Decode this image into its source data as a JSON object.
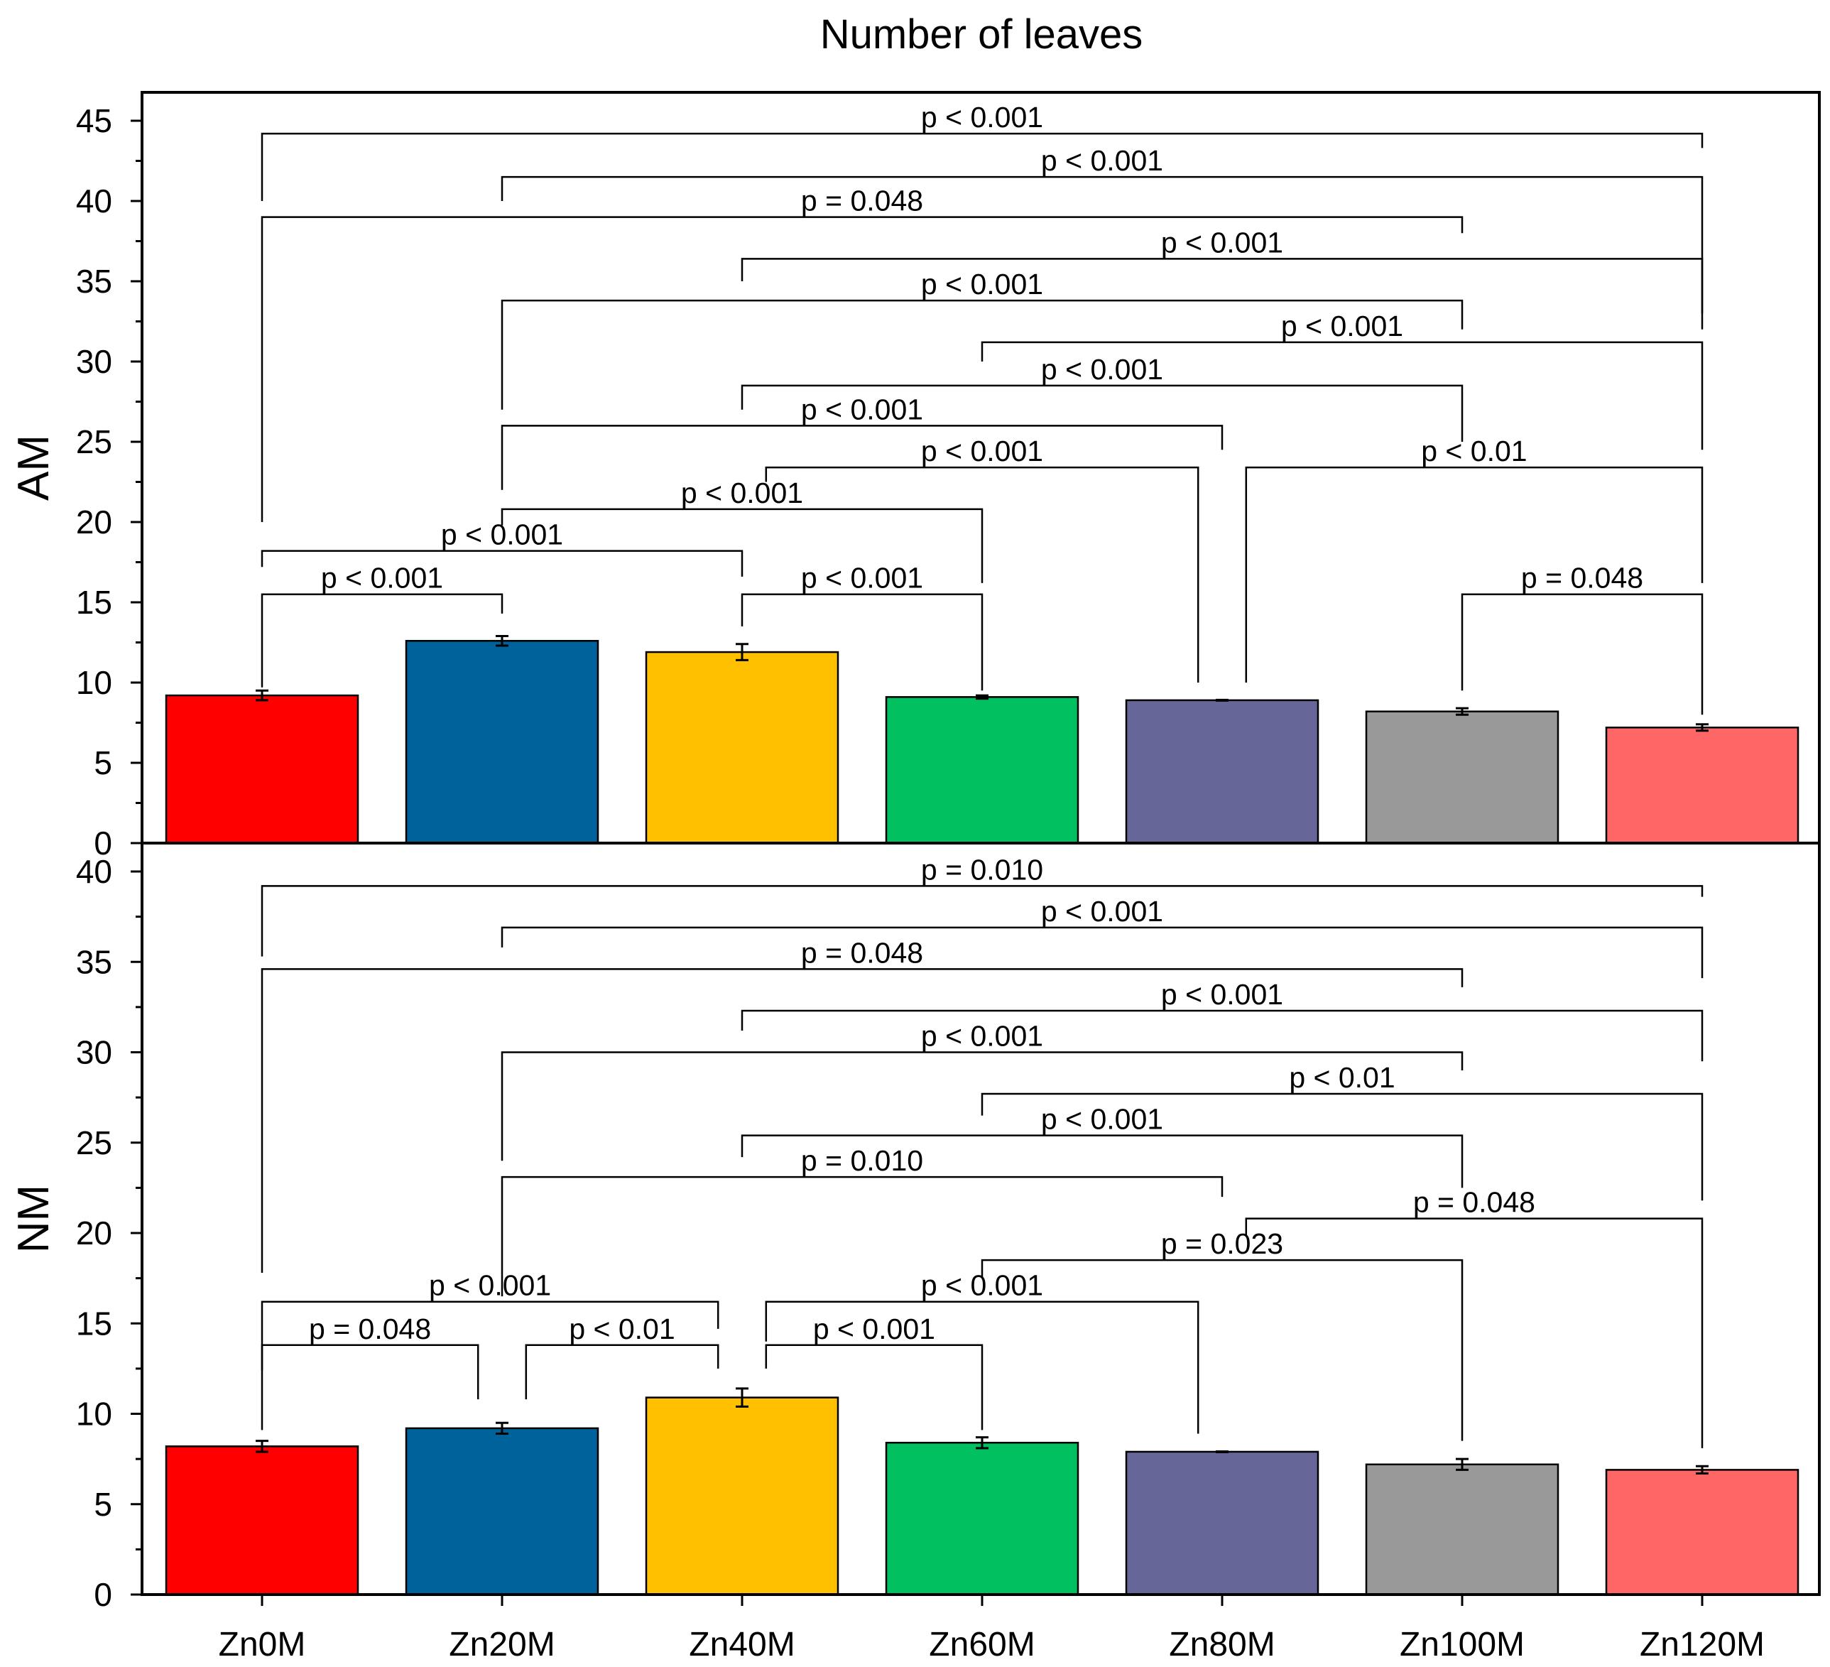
{
  "chart_data": {
    "type": "bar",
    "title": "Number of leaves",
    "categories": [
      "Zn0M",
      "Zn20M",
      "Zn40M",
      "Zn60M",
      "Zn80M",
      "Zn100M",
      "Zn120M"
    ],
    "colors": [
      "#ff0000",
      "#00629b",
      "#ffc000",
      "#00c060",
      "#666699",
      "#999999",
      "#ff6666"
    ],
    "panels": [
      {
        "ylabel": "AM",
        "ylim": [
          0,
          45
        ],
        "yticks": [
          0,
          5,
          10,
          15,
          20,
          25,
          30,
          35,
          40,
          45
        ],
        "values": [
          9.2,
          12.6,
          11.9,
          9.1,
          8.9,
          8.2,
          7.2
        ],
        "errors": [
          0.3,
          0.3,
          0.5,
          0.1,
          0,
          0.2,
          0.2
        ],
        "comparisons": [
          {
            "a": 0,
            "b": 6,
            "label": "p < 0.001",
            "y": 44.2,
            "a_end": 40,
            "b_end": 43.3
          },
          {
            "a": 1,
            "b": 6,
            "label": "p < 0.001",
            "y": 41.5,
            "a_end": 40,
            "b_end": 33.0
          },
          {
            "a": 0,
            "b": 5,
            "label": "p = 0.048",
            "y": 39.0,
            "a_end": 20,
            "b_end": 38.0
          },
          {
            "a": 2,
            "b": 6,
            "label": "p < 0.001",
            "y": 36.4,
            "a_end": 35,
            "b_end": 32.0
          },
          {
            "a": 1,
            "b": 5,
            "label": "p < 0.001",
            "y": 33.8,
            "a_end": 27,
            "b_end": 32.0
          },
          {
            "a": 3,
            "b": 6,
            "label": "p < 0.001",
            "y": 31.2,
            "a_end": 30,
            "b_end": 24.5
          },
          {
            "a": 2,
            "b": 5,
            "label": "p < 0.001",
            "y": 28.5,
            "a_end": 27,
            "b_end": 25.0
          },
          {
            "a": 1,
            "b": 4,
            "label": "p < 0.001",
            "y": 26.0,
            "a_end": 22,
            "b_end": 24.5
          },
          {
            "a": 2,
            "b": 4,
            "label": "p < 0.001",
            "y": 23.4,
            "a_end": 22.5,
            "b_end": 10.0,
            "a_x": 2.1,
            "b_x": 3.9
          },
          {
            "a": 4,
            "b": 6,
            "label": "p < 0.01",
            "y": 23.4,
            "a_end": 10.0,
            "b_end": 16.2,
            "a_x": 4.1
          },
          {
            "a": 1,
            "b": 3,
            "label": "p < 0.001",
            "y": 20.8,
            "a_end": 19.8,
            "b_end": 16.2
          },
          {
            "a": 0,
            "b": 2,
            "label": "p < 0.001",
            "y": 18.2,
            "a_end": 17.2,
            "b_end": 16.6
          },
          {
            "a": 0,
            "b": 1,
            "label": "p < 0.001",
            "y": 15.5,
            "a_end": 9.7,
            "b_end": 14.3
          },
          {
            "a": 2,
            "b": 3,
            "label": "p < 0.001",
            "y": 15.5,
            "a_end": 13.5,
            "b_end": 9.5
          },
          {
            "a": 5,
            "b": 6,
            "label": "p = 0.048",
            "y": 15.5,
            "a_end": 9.5,
            "b_end": 8.0
          }
        ]
      },
      {
        "ylabel": "NM",
        "ylim": [
          0,
          40
        ],
        "yticks": [
          0,
          5,
          10,
          15,
          20,
          25,
          30,
          35,
          40
        ],
        "values": [
          8.2,
          9.2,
          10.9,
          8.4,
          7.9,
          7.2,
          6.9
        ],
        "errors": [
          0.3,
          0.3,
          0.5,
          0.3,
          0,
          0.3,
          0.2
        ],
        "comparisons": [
          {
            "a": 0,
            "b": 6,
            "label": "p = 0.010",
            "y": 39.2,
            "a_end": 35.3,
            "b_end": 38.6
          },
          {
            "a": 1,
            "b": 6,
            "label": "p < 0.001",
            "y": 36.9,
            "a_end": 35.8,
            "b_end": 34.1
          },
          {
            "a": 0,
            "b": 5,
            "label": "p = 0.048",
            "y": 34.6,
            "a_end": 17.8,
            "b_end": 33.6
          },
          {
            "a": 2,
            "b": 6,
            "label": "p < 0.001",
            "y": 32.3,
            "a_end": 31.2,
            "b_end": 29.5
          },
          {
            "a": 1,
            "b": 5,
            "label": "p < 0.001",
            "y": 30.0,
            "a_end": 24.0,
            "b_end": 29.0
          },
          {
            "a": 3,
            "b": 6,
            "label": "p < 0.01",
            "y": 27.7,
            "a_end": 26.5,
            "b_end": 21.8
          },
          {
            "a": 2,
            "b": 5,
            "label": "p < 0.001",
            "y": 25.4,
            "a_end": 24.2,
            "b_end": 22.5
          },
          {
            "a": 1,
            "b": 4,
            "label": "p = 0.010",
            "y": 23.1,
            "a_end": 16.5,
            "b_end": 22.0
          },
          {
            "a": 4,
            "b": 6,
            "label": "p = 0.048",
            "y": 20.8,
            "a_end": 19.8,
            "b_end": 8.1,
            "a_x": 4.1
          },
          {
            "a": 3,
            "b": 5,
            "label": "p = 0.023",
            "y": 18.5,
            "a_end": 17.5,
            "b_end": 8.5
          },
          {
            "a": 0,
            "b": 2,
            "label": "p < 0.001",
            "y": 16.2,
            "a_end": 12.4,
            "b_end": 14.7,
            "b_x": 1.9
          },
          {
            "a": 2,
            "b": 4,
            "label": "p < 0.001",
            "y": 16.2,
            "a_end": 14.0,
            "b_end": 8.9,
            "a_x": 2.1,
            "b_x": 3.9
          },
          {
            "a": 0,
            "b": 1,
            "label": "p = 0.048",
            "y": 13.8,
            "a_end": 9.1,
            "b_end": 10.8,
            "b_x": 0.9
          },
          {
            "a": 1,
            "b": 2,
            "label": "p < 0.01",
            "y": 13.8,
            "a_end": 10.8,
            "b_end": 12.5,
            "a_x": 1.1,
            "b_x": 1.9
          },
          {
            "a": 2,
            "b": 3,
            "label": "p < 0.001",
            "y": 13.8,
            "a_end": 12.5,
            "b_end": 9.1,
            "a_x": 2.1
          }
        ]
      }
    ]
  }
}
